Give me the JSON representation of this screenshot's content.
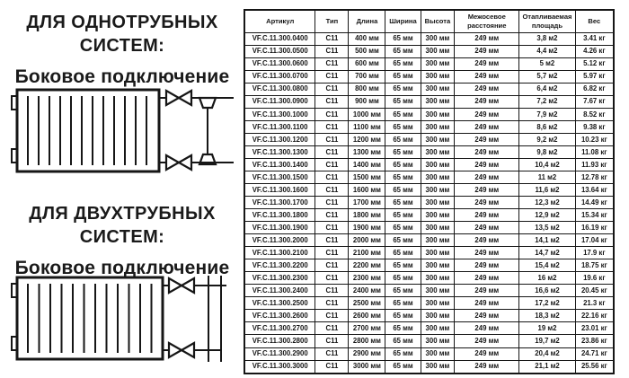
{
  "page": {
    "background": "#ffffff",
    "text_color": "#161616"
  },
  "left_panel": {
    "single_pipe": {
      "title_line1": "ДЛЯ ОДНОТРУБНЫХ",
      "title_line2": "СИСТЕМ:",
      "subtitle": "Боковое подключение"
    },
    "double_pipe": {
      "title_line1": "ДЛЯ ДВУХТРУБНЫХ",
      "title_line2": "СИСТЕМ:",
      "subtitle": "Боковое подключение"
    },
    "diagram_icons": [
      "radiator-one-pipe-side-connection",
      "radiator-two-pipe-side-connection"
    ]
  },
  "table": {
    "headers": [
      "Артикул",
      "Тип",
      "Длина",
      "Ширина",
      "Высота",
      "Межосевое расстояние",
      "Отапливаемая площадь",
      "Вес"
    ],
    "rows": [
      [
        "VF.C.11.300.0400",
        "C11",
        "400 мм",
        "65 мм",
        "300 мм",
        "249 мм",
        "3,8 м2",
        "3.41 кг"
      ],
      [
        "VF.C.11.300.0500",
        "C11",
        "500 мм",
        "65 мм",
        "300 мм",
        "249 мм",
        "4,4 м2",
        "4.26 кг"
      ],
      [
        "VF.C.11.300.0600",
        "C11",
        "600 мм",
        "65 мм",
        "300 мм",
        "249 мм",
        "5 м2",
        "5.12 кг"
      ],
      [
        "VF.C.11.300.0700",
        "C11",
        "700 мм",
        "65 мм",
        "300 мм",
        "249 мм",
        "5,7 м2",
        "5.97 кг"
      ],
      [
        "VF.C.11.300.0800",
        "C11",
        "800 мм",
        "65 мм",
        "300 мм",
        "249 мм",
        "6,4 м2",
        "6.82 кг"
      ],
      [
        "VF.C.11.300.0900",
        "C11",
        "900 мм",
        "65 мм",
        "300 мм",
        "249 мм",
        "7,2 м2",
        "7.67 кг"
      ],
      [
        "VF.C.11.300.1000",
        "C11",
        "1000 мм",
        "65 мм",
        "300 мм",
        "249 мм",
        "7,9 м2",
        "8.52 кг"
      ],
      [
        "VF.C.11.300.1100",
        "C11",
        "1100 мм",
        "65 мм",
        "300 мм",
        "249 мм",
        "8,6 м2",
        "9.38 кг"
      ],
      [
        "VF.C.11.300.1200",
        "C11",
        "1200 мм",
        "65 мм",
        "300 мм",
        "249 мм",
        "9,2 м2",
        "10.23 кг"
      ],
      [
        "VF.C.11.300.1300",
        "C11",
        "1300 мм",
        "65 мм",
        "300 мм",
        "249 мм",
        "9,8 м2",
        "11.08 кг"
      ],
      [
        "VF.C.11.300.1400",
        "C11",
        "1400 мм",
        "65 мм",
        "300 мм",
        "249 мм",
        "10,4 м2",
        "11.93 кг"
      ],
      [
        "VF.C.11.300.1500",
        "C11",
        "1500 мм",
        "65 мм",
        "300 мм",
        "249 мм",
        "11 м2",
        "12.78 кг"
      ],
      [
        "VF.C.11.300.1600",
        "C11",
        "1600 мм",
        "65 мм",
        "300 мм",
        "249 мм",
        "11,6 м2",
        "13.64 кг"
      ],
      [
        "VF.C.11.300.1700",
        "C11",
        "1700 мм",
        "65 мм",
        "300 мм",
        "249 мм",
        "12,3 м2",
        "14.49 кг"
      ],
      [
        "VF.C.11.300.1800",
        "C11",
        "1800 мм",
        "65 мм",
        "300 мм",
        "249 мм",
        "12,9 м2",
        "15.34 кг"
      ],
      [
        "VF.C.11.300.1900",
        "C11",
        "1900 мм",
        "65 мм",
        "300 мм",
        "249 мм",
        "13,5 м2",
        "16.19 кг"
      ],
      [
        "VF.C.11.300.2000",
        "C11",
        "2000 мм",
        "65 мм",
        "300 мм",
        "249 мм",
        "14,1 м2",
        "17.04 кг"
      ],
      [
        "VF.C.11.300.2100",
        "C11",
        "2100 мм",
        "65 мм",
        "300 мм",
        "249 мм",
        "14,7 м2",
        "17.9 кг"
      ],
      [
        "VF.C.11.300.2200",
        "C11",
        "2200 мм",
        "65 мм",
        "300 мм",
        "249 мм",
        "15,4 м2",
        "18.75 кг"
      ],
      [
        "VF.C.11.300.2300",
        "C11",
        "2300 мм",
        "65 мм",
        "300 мм",
        "249 мм",
        "16 м2",
        "19.6 кг"
      ],
      [
        "VF.C.11.300.2400",
        "C11",
        "2400 мм",
        "65 мм",
        "300 мм",
        "249 мм",
        "16,6 м2",
        "20.45 кг"
      ],
      [
        "VF.C.11.300.2500",
        "C11",
        "2500 мм",
        "65 мм",
        "300 мм",
        "249 мм",
        "17,2 м2",
        "21.3 кг"
      ],
      [
        "VF.C.11.300.2600",
        "C11",
        "2600 мм",
        "65 мм",
        "300 мм",
        "249 мм",
        "18,3 м2",
        "22.16 кг"
      ],
      [
        "VF.C.11.300.2700",
        "C11",
        "2700 мм",
        "65 мм",
        "300 мм",
        "249 мм",
        "19 м2",
        "23.01 кг"
      ],
      [
        "VF.C.11.300.2800",
        "C11",
        "2800 мм",
        "65 мм",
        "300 мм",
        "249 мм",
        "19,7 м2",
        "23.86 кг"
      ],
      [
        "VF.C.11.300.2900",
        "C11",
        "2900 мм",
        "65 мм",
        "300 мм",
        "249 мм",
        "20,4 м2",
        "24.71 кг"
      ],
      [
        "VF.C.11.300.3000",
        "C11",
        "3000 мм",
        "65 мм",
        "300 мм",
        "249 мм",
        "21,1 м2",
        "25.56 кг"
      ]
    ]
  }
}
